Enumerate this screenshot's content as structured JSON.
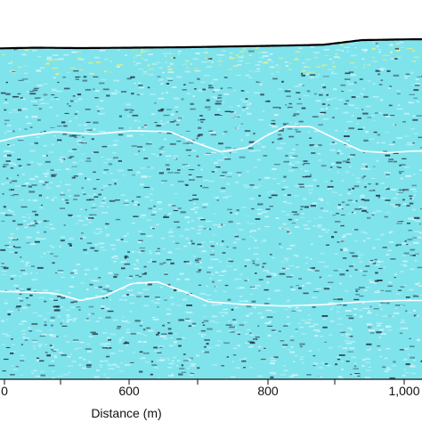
{
  "chart_data": {
    "type": "heatmap",
    "title": "",
    "xlabel": "Distance (m)",
    "ylabel": "",
    "xlim": [
      400,
      1060
    ],
    "x_ticks": [
      400,
      500,
      600,
      700,
      800,
      900,
      1000
    ],
    "x_tick_labels": [
      "",
      "",
      "600",
      "",
      "800",
      "",
      "1,000"
    ],
    "x_tick_label_partial": "0",
    "description_colors": {
      "background": "#7fe3ec",
      "highlight": "#e8f27a",
      "dark": "#1c2a3a",
      "trace_white": "#ffffff"
    },
    "interpreted_horizons": [
      {
        "id": "surface",
        "x": [
          400,
          470,
          540,
          620,
          700,
          780,
          860,
          920,
          980,
          1060
        ],
        "y_frac": [
          0.115,
          0.113,
          0.114,
          0.113,
          0.112,
          0.11,
          0.108,
          0.106,
          0.095,
          0.093
        ],
        "color": "#000000"
      },
      {
        "id": "horizon-upper",
        "x": [
          400,
          440,
          500,
          560,
          620,
          680,
          720,
          760,
          800,
          830,
          860,
          900,
          940,
          980,
          1020,
          1060
        ],
        "y_frac": [
          0.34,
          0.325,
          0.312,
          0.318,
          0.31,
          0.312,
          0.338,
          0.36,
          0.35,
          0.322,
          0.3,
          0.3,
          0.33,
          0.358,
          0.362,
          0.358
        ],
        "color": "#ffffff"
      },
      {
        "id": "horizon-lower",
        "x": [
          400,
          450,
          500,
          540,
          580,
          620,
          660,
          700,
          740,
          800,
          860,
          920,
          980,
          1040,
          1060
        ],
        "y_frac": [
          0.69,
          0.692,
          0.695,
          0.712,
          0.7,
          0.672,
          0.668,
          0.69,
          0.715,
          0.722,
          0.725,
          0.722,
          0.715,
          0.712,
          0.712
        ],
        "color": "#ffffff"
      }
    ],
    "grid": false,
    "legend": "none"
  }
}
